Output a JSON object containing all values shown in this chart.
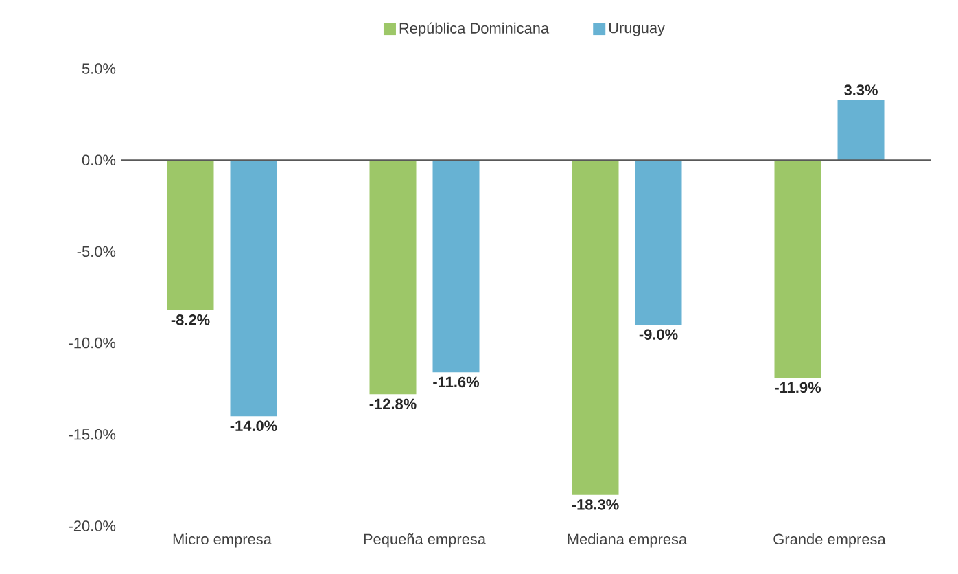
{
  "chart_data": {
    "type": "bar",
    "categories": [
      "Micro empresa",
      "Pequeña empresa",
      "Mediana empresa",
      "Grande empresa"
    ],
    "series": [
      {
        "name": "República Dominicana",
        "color": "#9dc768",
        "values": [
          -8.2,
          -12.8,
          -18.3,
          -11.9
        ],
        "value_labels": [
          "-8.2%",
          "-12.8%",
          "-18.3%",
          "-11.9%"
        ]
      },
      {
        "name": "Uruguay",
        "color": "#67b2d3",
        "values": [
          -14.0,
          -11.6,
          -9.0,
          3.3
        ],
        "value_labels": [
          "-14.0%",
          "-11.6%",
          "-9.0%",
          "3.3%"
        ]
      }
    ],
    "ylim": [
      -20,
      5
    ],
    "yticks": [
      {
        "value": -20,
        "label": "-20.0%"
      },
      {
        "value": -15,
        "label": "-15.0%"
      },
      {
        "value": -10,
        "label": "-10.0%"
      },
      {
        "value": -5,
        "label": "-5.0%"
      },
      {
        "value": 0,
        "label": "0.0%"
      },
      {
        "value": 5,
        "label": "5.0%"
      }
    ],
    "legend": "top",
    "ref_lines": [
      {
        "axis": "y",
        "value": 0,
        "color": "#595959"
      }
    ]
  }
}
